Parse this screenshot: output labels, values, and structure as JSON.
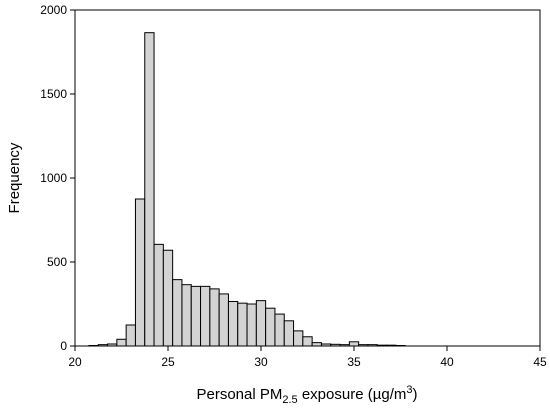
{
  "chart_data": {
    "type": "bar",
    "xlabel": {
      "prefix": "Personal PM",
      "subscript": "2.5",
      "middle": " exposure (µg/m",
      "superscript": "3",
      "suffix": ")"
    },
    "ylabel": "Frequency",
    "xlim": [
      20,
      45
    ],
    "ylim": [
      0,
      2000
    ],
    "x_ticks": [
      20,
      25,
      30,
      35,
      40,
      45
    ],
    "x_tick_labels": [
      "20",
      "25",
      "30",
      "35",
      "40",
      "45"
    ],
    "y_ticks": [
      0,
      500,
      1000,
      1500,
      2000
    ],
    "y_tick_labels": [
      "0",
      "500",
      "1000",
      "1500",
      "2000"
    ],
    "bin_width": 0.5,
    "bin_starts": [
      20.75,
      21.25,
      21.75,
      22.25,
      22.75,
      23.25,
      23.75,
      24.25,
      24.75,
      25.25,
      25.75,
      26.25,
      26.75,
      27.25,
      27.75,
      28.25,
      28.75,
      29.25,
      29.75,
      30.25,
      30.75,
      31.25,
      31.75,
      32.25,
      32.75,
      33.25,
      33.75,
      34.25,
      34.75,
      35.25,
      35.75,
      36.25,
      36.75,
      37.25
    ],
    "values": [
      3,
      8,
      12,
      40,
      125,
      875,
      1865,
      605,
      570,
      395,
      365,
      355,
      355,
      340,
      310,
      265,
      255,
      250,
      270,
      225,
      190,
      150,
      90,
      55,
      20,
      12,
      10,
      8,
      25,
      8,
      8,
      5,
      5,
      3
    ],
    "bar_fill": "#d3d3d3",
    "bar_stroke": "#000000",
    "grid": false,
    "legend": "none"
  }
}
